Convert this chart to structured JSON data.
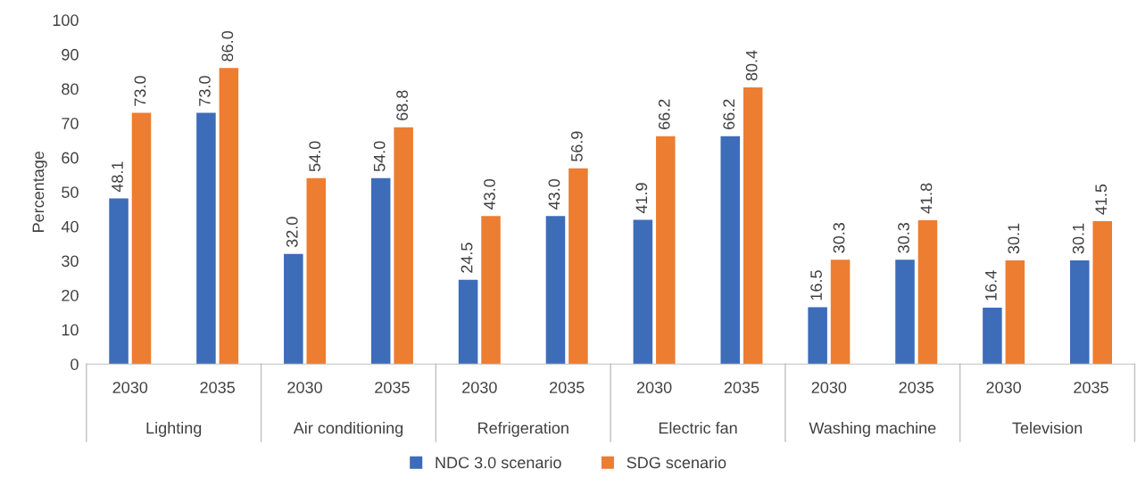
{
  "chart_data": {
    "type": "bar",
    "ylabel": "Percentage",
    "categories": [
      "2030",
      "2035",
      "2030",
      "2035",
      "2030",
      "2035",
      "2030",
      "2035",
      "2030",
      "2035",
      "2030",
      "2035"
    ],
    "annotations": [
      "Lighting",
      "Air conditioning",
      "Refrigeration",
      "Electric fan",
      "Washing machine",
      "Television"
    ],
    "series": [
      {
        "name": "NDC 3.0 scenario",
        "color": "#3d6cb9",
        "values": [
          48.1,
          73,
          32,
          54,
          24.5,
          43,
          41.9,
          66.2,
          16.5,
          30.3,
          16.4,
          30.1
        ],
        "value_labels": [
          "48.1",
          "73.0",
          "32.0",
          "54.0",
          "24.5",
          "43.0",
          "41.9",
          "66.2",
          "16.5",
          "30.3",
          "16.4",
          "30.1"
        ]
      },
      {
        "name": "SDG scenario",
        "color": "#ed7d31",
        "values": [
          73,
          86,
          54,
          68.8,
          43,
          56.9,
          66.2,
          80.4,
          30.3,
          41.8,
          30.1,
          41.5
        ],
        "value_labels": [
          "73.0",
          "86.0",
          "54.0",
          "68.8",
          "43.0",
          "56.9",
          "66.2",
          "80.4",
          "30.3",
          "41.8",
          "30.1",
          "41.5"
        ]
      }
    ],
    "ylim": [
      0,
      100
    ],
    "yticks": [
      0,
      10,
      20,
      30,
      40,
      50,
      60,
      70,
      80,
      90,
      100
    ],
    "grid": false,
    "legend": "bottom"
  }
}
